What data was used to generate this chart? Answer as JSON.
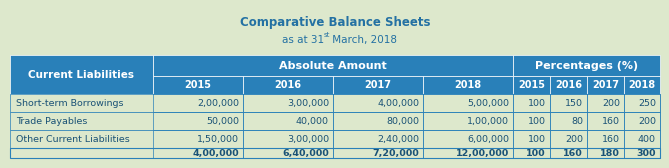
{
  "title1": "Comparative Balance Sheets",
  "title2_pre": "as at 31",
  "title2_sup": "st",
  "title2_post": " March, 2018",
  "header1": "Current Liabilities",
  "header2": "Absolute Amount",
  "header3": "Percentages (%)",
  "subheaders": [
    "2015",
    "2016",
    "2017",
    "2018",
    "2015",
    "2016",
    "2017",
    "2018"
  ],
  "rows": [
    [
      "Short-term Borrowings",
      "2,00,000",
      "3,00,000",
      "4,00,000",
      "5,00,000",
      "100",
      "150",
      "200",
      "250"
    ],
    [
      "Trade Payables",
      "50,000",
      "40,000",
      "80,000",
      "1,00,000",
      "100",
      "80",
      "160",
      "200"
    ],
    [
      "Other Current Liabilities",
      "1,50,000",
      "3,00,000",
      "2,40,000",
      "6,00,000",
      "100",
      "200",
      "160",
      "400"
    ]
  ],
  "total_row": [
    "",
    "4,00,000",
    "6,40,000",
    "7,20,000",
    "12,00,000",
    "100",
    "160",
    "180",
    "300"
  ],
  "bg_color": "#dde8cc",
  "header_bg": "#2980b9",
  "header_text": "#ffffff",
  "data_text": "#1a5276",
  "title_color": "#2471a3",
  "border_color": "#2980b9"
}
